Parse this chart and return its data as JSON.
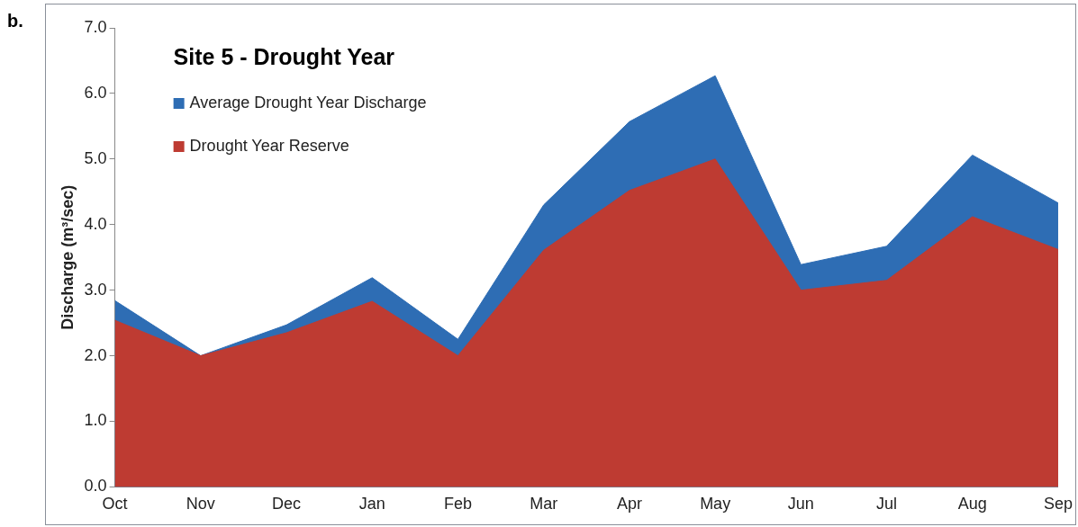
{
  "chart_data": {
    "type": "area",
    "title": "Site 5 - Drought Year",
    "ylabel": "Discharge (m³/sec)",
    "annotations": [
      "b."
    ],
    "categories": [
      "Oct",
      "Nov",
      "Dec",
      "Jan",
      "Feb",
      "Mar",
      "Apr",
      "May",
      "Jun",
      "Jul",
      "Aug",
      "Sep"
    ],
    "series": [
      {
        "name": "Average Drought Year Discharge",
        "color": "#2e6db4",
        "values": [
          2.84,
          2.0,
          2.47,
          3.19,
          2.25,
          4.3,
          5.57,
          6.27,
          3.39,
          3.67,
          5.06,
          4.33
        ]
      },
      {
        "name": "Drought Year Reserve",
        "color": "#be3b32",
        "values": [
          2.54,
          2.0,
          2.35,
          2.83,
          2.0,
          3.61,
          4.52,
          5.0,
          3.0,
          3.15,
          4.12,
          3.62
        ]
      }
    ],
    "ylim": [
      0,
      7
    ],
    "yticks": [
      {
        "value": 0,
        "label": "0.0"
      },
      {
        "value": 1,
        "label": "1.0"
      },
      {
        "value": 2,
        "label": "2.0"
      },
      {
        "value": 3,
        "label": "3.0"
      },
      {
        "value": 4,
        "label": "4.0"
      },
      {
        "value": 5,
        "label": "5.0"
      },
      {
        "value": 6,
        "label": "6.0"
      },
      {
        "value": 7,
        "label": "7.0"
      }
    ],
    "grid": false,
    "legend": "top left"
  }
}
